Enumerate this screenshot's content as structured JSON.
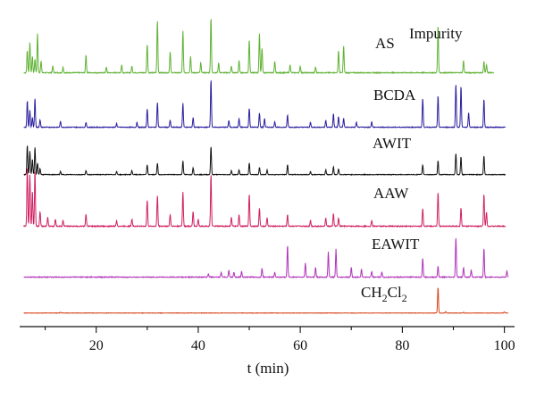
{
  "chart_data": {
    "type": "line",
    "xlabel": "t (min)",
    "xlim": [
      5,
      102
    ],
    "xticks": [
      20,
      40,
      60,
      80,
      100
    ],
    "grid": false,
    "legend": "none",
    "series": [
      {
        "name": "AS",
        "color": "#5fb233",
        "peaks": [
          [
            6.5,
            40
          ],
          [
            7.0,
            55
          ],
          [
            7.5,
            30
          ],
          [
            8.0,
            25
          ],
          [
            8.5,
            70
          ],
          [
            9.2,
            22
          ],
          [
            11.5,
            12
          ],
          [
            13.5,
            10
          ],
          [
            18.0,
            32
          ],
          [
            22.0,
            10
          ],
          [
            25.0,
            14
          ],
          [
            27.0,
            12
          ],
          [
            30.0,
            52
          ],
          [
            32.0,
            95
          ],
          [
            34.5,
            38
          ],
          [
            37.0,
            75
          ],
          [
            38.5,
            30
          ],
          [
            40.5,
            18
          ],
          [
            42.5,
            100
          ],
          [
            44.0,
            18
          ],
          [
            46.5,
            12
          ],
          [
            48.0,
            22
          ],
          [
            50.0,
            60
          ],
          [
            52.0,
            70
          ],
          [
            52.5,
            45
          ],
          [
            55.0,
            20
          ],
          [
            58.0,
            15
          ],
          [
            60.0,
            12
          ],
          [
            63.0,
            10
          ],
          [
            67.5,
            40
          ],
          [
            68.5,
            48
          ],
          [
            87.0,
            85
          ],
          [
            92.0,
            22
          ],
          [
            96.0,
            20
          ],
          [
            96.5,
            14
          ]
        ]
      },
      {
        "name": "BCDA",
        "color": "#2a1f9e",
        "peaks": [
          [
            6.5,
            55
          ],
          [
            7.0,
            35
          ],
          [
            7.5,
            20
          ],
          [
            8.0,
            60
          ],
          [
            9.0,
            15
          ],
          [
            13.0,
            12
          ],
          [
            18.0,
            10
          ],
          [
            24.0,
            8
          ],
          [
            28.0,
            10
          ],
          [
            30.0,
            38
          ],
          [
            32.0,
            52
          ],
          [
            34.5,
            15
          ],
          [
            37.0,
            50
          ],
          [
            39.0,
            20
          ],
          [
            42.5,
            100
          ],
          [
            46.0,
            14
          ],
          [
            48.0,
            18
          ],
          [
            50.0,
            40
          ],
          [
            52.0,
            30
          ],
          [
            53.0,
            18
          ],
          [
            55.0,
            12
          ],
          [
            57.5,
            25
          ],
          [
            62.0,
            10
          ],
          [
            65.0,
            15
          ],
          [
            66.5,
            28
          ],
          [
            67.5,
            22
          ],
          [
            68.5,
            18
          ],
          [
            71.0,
            10
          ],
          [
            74.0,
            12
          ],
          [
            84.0,
            60
          ],
          [
            87.0,
            65
          ],
          [
            90.5,
            90
          ],
          [
            91.5,
            85
          ],
          [
            93.0,
            30
          ],
          [
            96.0,
            58
          ]
        ]
      },
      {
        "name": "AWIT",
        "color": "#111111",
        "peaks": [
          [
            6.5,
            75
          ],
          [
            7.0,
            60
          ],
          [
            7.5,
            40
          ],
          [
            8.0,
            70
          ],
          [
            8.5,
            30
          ],
          [
            9.0,
            15
          ],
          [
            13.0,
            8
          ],
          [
            18.0,
            10
          ],
          [
            24.0,
            8
          ],
          [
            27.0,
            10
          ],
          [
            30.0,
            25
          ],
          [
            32.0,
            30
          ],
          [
            37.0,
            35
          ],
          [
            39.0,
            18
          ],
          [
            42.5,
            72
          ],
          [
            46.5,
            10
          ],
          [
            48.0,
            12
          ],
          [
            50.0,
            30
          ],
          [
            52.0,
            18
          ],
          [
            53.5,
            12
          ],
          [
            57.5,
            25
          ],
          [
            62.0,
            8
          ],
          [
            65.0,
            12
          ],
          [
            66.5,
            20
          ],
          [
            67.5,
            15
          ],
          [
            84.0,
            25
          ],
          [
            87.0,
            35
          ],
          [
            90.5,
            55
          ],
          [
            91.5,
            45
          ],
          [
            96.0,
            48
          ]
        ]
      },
      {
        "name": "AAW",
        "color": "#cf2060",
        "peaks": [
          [
            6.5,
            100
          ],
          [
            7.0,
            88
          ],
          [
            7.5,
            60
          ],
          [
            8.0,
            95
          ],
          [
            9.0,
            25
          ],
          [
            10.5,
            15
          ],
          [
            12.0,
            12
          ],
          [
            13.5,
            10
          ],
          [
            18.0,
            20
          ],
          [
            24.0,
            10
          ],
          [
            27.0,
            12
          ],
          [
            30.0,
            45
          ],
          [
            32.0,
            52
          ],
          [
            34.5,
            20
          ],
          [
            37.0,
            58
          ],
          [
            39.0,
            25
          ],
          [
            40.0,
            12
          ],
          [
            42.5,
            88
          ],
          [
            46.5,
            15
          ],
          [
            48.0,
            20
          ],
          [
            50.0,
            55
          ],
          [
            52.0,
            30
          ],
          [
            53.5,
            15
          ],
          [
            57.5,
            20
          ],
          [
            62.0,
            10
          ],
          [
            65.0,
            14
          ],
          [
            66.5,
            22
          ],
          [
            67.5,
            14
          ],
          [
            74.0,
            10
          ],
          [
            84.0,
            30
          ],
          [
            87.0,
            58
          ],
          [
            91.5,
            32
          ],
          [
            96.0,
            55
          ],
          [
            96.5,
            25
          ]
        ]
      },
      {
        "name": "EAWIT",
        "color": "#b034b8",
        "peaks": [
          [
            42.0,
            6
          ],
          [
            44.5,
            10
          ],
          [
            46.0,
            14
          ],
          [
            47.0,
            10
          ],
          [
            48.5,
            12
          ],
          [
            52.5,
            18
          ],
          [
            55.0,
            10
          ],
          [
            57.5,
            64
          ],
          [
            61.0,
            28
          ],
          [
            63.0,
            20
          ],
          [
            65.5,
            50
          ],
          [
            67.0,
            56
          ],
          [
            70.0,
            20
          ],
          [
            72.0,
            16
          ],
          [
            74.0,
            12
          ],
          [
            76.0,
            10
          ],
          [
            84.0,
            38
          ],
          [
            87.0,
            22
          ],
          [
            90.5,
            80
          ],
          [
            92.0,
            20
          ],
          [
            93.5,
            14
          ],
          [
            96.0,
            58
          ],
          [
            100.5,
            12
          ]
        ]
      },
      {
        "name": "CH2Cl2",
        "color": "#d8431a",
        "peaks": [
          [
            13.0,
            3
          ],
          [
            87.0,
            100
          ],
          [
            88.5,
            5
          ],
          [
            92.0,
            3
          ],
          [
            100.0,
            4
          ]
        ]
      }
    ],
    "annotations": [
      {
        "text": "AS"
      },
      {
        "text": "Impurity",
        "x": 87
      },
      {
        "text": "BCDA"
      },
      {
        "text": "AWIT"
      },
      {
        "text": "AAW"
      },
      {
        "text": "EAWIT"
      },
      {
        "text_main": "CH",
        "sub1": "2",
        "text_mid": "Cl",
        "sub2": "2"
      }
    ]
  }
}
